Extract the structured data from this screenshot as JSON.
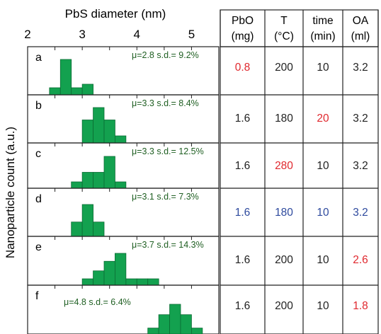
{
  "chart_data": {
    "type": "bar",
    "xlabel": "PbS diameter (nm)",
    "ylabel": "Nanoparticle count (a.u.)",
    "xlim": [
      2,
      5.5
    ],
    "x_ticks": [
      "2",
      "3",
      "4",
      "5"
    ],
    "bar_color": "#13a14f",
    "panels": [
      {
        "label": "a",
        "stat": "μ=2.8 s.d.= 9.2%",
        "bins": [
          {
            "x0": 2.4,
            "x1": 2.6,
            "h": 0.2
          },
          {
            "x0": 2.6,
            "x1": 2.8,
            "h": 1.0
          },
          {
            "x0": 2.8,
            "x1": 3.0,
            "h": 0.2
          },
          {
            "x0": 3.0,
            "x1": 3.2,
            "h": 0.3
          }
        ]
      },
      {
        "label": "b",
        "stat": "μ=3.3 s.d.= 8.4%",
        "bins": [
          {
            "x0": 3.0,
            "x1": 3.2,
            "h": 0.65
          },
          {
            "x0": 3.2,
            "x1": 3.4,
            "h": 1.0
          },
          {
            "x0": 3.4,
            "x1": 3.6,
            "h": 0.65
          },
          {
            "x0": 3.6,
            "x1": 3.8,
            "h": 0.2
          }
        ]
      },
      {
        "label": "c",
        "stat": "μ=3.3 s.d.= 12.5%",
        "bins": [
          {
            "x0": 2.8,
            "x1": 3.0,
            "h": 0.2
          },
          {
            "x0": 3.0,
            "x1": 3.2,
            "h": 0.5
          },
          {
            "x0": 3.2,
            "x1": 3.4,
            "h": 0.5
          },
          {
            "x0": 3.4,
            "x1": 3.6,
            "h": 1.0
          },
          {
            "x0": 3.6,
            "x1": 3.8,
            "h": 0.2
          }
        ]
      },
      {
        "label": "d",
        "stat": "μ=3.1 s.d.= 7.3%",
        "bins": [
          {
            "x0": 2.8,
            "x1": 3.0,
            "h": 0.45
          },
          {
            "x0": 3.0,
            "x1": 3.2,
            "h": 1.0
          },
          {
            "x0": 3.2,
            "x1": 3.4,
            "h": 0.45
          }
        ]
      },
      {
        "label": "e",
        "stat": "μ=3.7 s.d.= 14.3%",
        "bins": [
          {
            "x0": 3.0,
            "x1": 3.2,
            "h": 0.2
          },
          {
            "x0": 3.2,
            "x1": 3.4,
            "h": 0.45
          },
          {
            "x0": 3.4,
            "x1": 3.6,
            "h": 0.75
          },
          {
            "x0": 3.6,
            "x1": 3.8,
            "h": 1.0
          },
          {
            "x0": 3.8,
            "x1": 4.0,
            "h": 0.2
          },
          {
            "x0": 4.0,
            "x1": 4.2,
            "h": 0.2
          },
          {
            "x0": 4.2,
            "x1": 4.4,
            "h": 0.2
          }
        ]
      },
      {
        "label": "f",
        "stat": "μ=4.8 s.d.= 6.4%",
        "bins": [
          {
            "x0": 4.2,
            "x1": 4.4,
            "h": 0.2
          },
          {
            "x0": 4.4,
            "x1": 4.6,
            "h": 0.65
          },
          {
            "x0": 4.6,
            "x1": 4.8,
            "h": 1.0
          },
          {
            "x0": 4.8,
            "x1": 5.0,
            "h": 0.65
          },
          {
            "x0": 5.0,
            "x1": 5.2,
            "h": 0.2
          }
        ]
      }
    ]
  },
  "table": {
    "headers": [
      {
        "line1": "PbO",
        "line2": "(mg)"
      },
      {
        "line1": "T",
        "line2": "(°C)"
      },
      {
        "line1": "time",
        "line2": "(min)"
      },
      {
        "line1": "OA",
        "line2": "(ml)"
      }
    ],
    "rows": [
      [
        {
          "v": "0.8",
          "c": "red"
        },
        {
          "v": "200",
          "c": "black"
        },
        {
          "v": "10",
          "c": "black"
        },
        {
          "v": "3.2",
          "c": "black"
        }
      ],
      [
        {
          "v": "1.6",
          "c": "black"
        },
        {
          "v": "180",
          "c": "black"
        },
        {
          "v": "20",
          "c": "red"
        },
        {
          "v": "3.2",
          "c": "black"
        }
      ],
      [
        {
          "v": "1.6",
          "c": "black"
        },
        {
          "v": "280",
          "c": "red"
        },
        {
          "v": "10",
          "c": "black"
        },
        {
          "v": "3.2",
          "c": "black"
        }
      ],
      [
        {
          "v": "1.6",
          "c": "blue"
        },
        {
          "v": "180",
          "c": "blue"
        },
        {
          "v": "10",
          "c": "blue"
        },
        {
          "v": "3.2",
          "c": "blue"
        }
      ],
      [
        {
          "v": "1.6",
          "c": "black"
        },
        {
          "v": "200",
          "c": "black"
        },
        {
          "v": "10",
          "c": "black"
        },
        {
          "v": "2.6",
          "c": "red"
        }
      ],
      [
        {
          "v": "1.6",
          "c": "black"
        },
        {
          "v": "200",
          "c": "black"
        },
        {
          "v": "10",
          "c": "black"
        },
        {
          "v": "1.8",
          "c": "red"
        }
      ]
    ]
  },
  "colors": {
    "red": "#e0282e",
    "blue": "#2e4a9e",
    "black": "#222222",
    "stat_text": "#1f5f22"
  }
}
